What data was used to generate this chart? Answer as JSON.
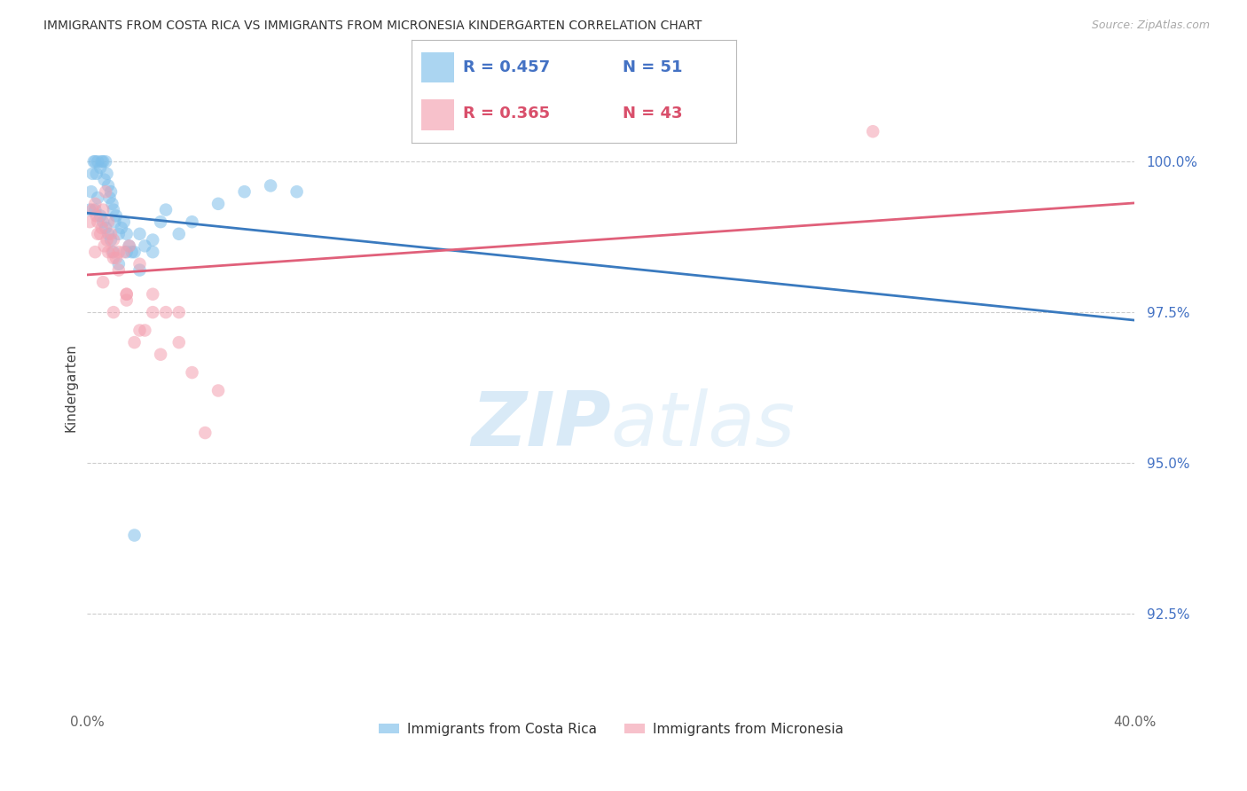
{
  "title": "IMMIGRANTS FROM COSTA RICA VS IMMIGRANTS FROM MICRONESIA KINDERGARTEN CORRELATION CHART",
  "source": "Source: ZipAtlas.com",
  "ylabel": "Kindergarten",
  "xlim": [
    0.0,
    40.0
  ],
  "ylim": [
    91.0,
    101.5
  ],
  "yticks": [
    92.5,
    95.0,
    97.5,
    100.0
  ],
  "ytick_labels": [
    "92.5%",
    "95.0%",
    "97.5%",
    "100.0%"
  ],
  "xticks": [
    0.0,
    5.0,
    10.0,
    15.0,
    20.0,
    25.0,
    30.0,
    35.0,
    40.0
  ],
  "xtick_labels": [
    "0.0%",
    "",
    "",
    "",
    "",
    "",
    "",
    "",
    "40.0%"
  ],
  "legend_blue_r": "R = 0.457",
  "legend_blue_n": "N = 51",
  "legend_pink_r": "R = 0.365",
  "legend_pink_n": "N = 43",
  "blue_color": "#7fbfea",
  "pink_color": "#f4a0b0",
  "blue_line_color": "#3a7abf",
  "pink_line_color": "#e0607a",
  "costa_rica_x": [
    0.1,
    0.15,
    0.2,
    0.25,
    0.3,
    0.35,
    0.4,
    0.5,
    0.55,
    0.6,
    0.65,
    0.7,
    0.75,
    0.8,
    0.85,
    0.9,
    0.95,
    1.0,
    1.05,
    1.1,
    1.2,
    1.3,
    1.4,
    1.5,
    1.6,
    1.7,
    1.8,
    2.0,
    2.2,
    2.5,
    2.8,
    3.0,
    3.5,
    4.0,
    5.0,
    6.0,
    7.0,
    8.0,
    0.3,
    0.4,
    0.6,
    0.8,
    1.0,
    1.2,
    1.5,
    2.0,
    0.5,
    0.7,
    0.9,
    2.5,
    1.8
  ],
  "costa_rica_y": [
    99.2,
    99.5,
    99.8,
    100.0,
    100.0,
    99.8,
    100.0,
    99.9,
    100.0,
    100.0,
    99.7,
    100.0,
    99.8,
    99.6,
    99.4,
    99.5,
    99.3,
    99.2,
    99.0,
    99.1,
    98.8,
    98.9,
    99.0,
    98.8,
    98.6,
    98.5,
    98.5,
    98.8,
    98.6,
    98.7,
    99.0,
    99.2,
    98.8,
    99.0,
    99.3,
    99.5,
    99.6,
    99.5,
    99.2,
    99.4,
    99.0,
    98.8,
    98.5,
    98.3,
    98.5,
    98.2,
    99.1,
    98.9,
    98.7,
    98.5,
    93.8
  ],
  "micronesia_x": [
    0.1,
    0.2,
    0.3,
    0.4,
    0.5,
    0.6,
    0.7,
    0.8,
    0.9,
    1.0,
    1.2,
    1.4,
    1.6,
    2.0,
    2.5,
    3.0,
    3.5,
    0.35,
    0.55,
    0.75,
    0.95,
    1.1,
    1.5,
    2.2,
    0.4,
    0.65,
    1.0,
    1.5,
    2.0,
    4.5,
    1.8,
    2.8,
    0.8,
    1.2,
    1.5,
    2.5,
    3.5,
    4.0,
    5.0,
    30.0,
    0.3,
    0.6,
    1.0
  ],
  "micronesia_y": [
    99.0,
    99.2,
    99.3,
    99.0,
    98.8,
    99.2,
    99.5,
    99.0,
    98.8,
    98.7,
    98.5,
    98.5,
    98.6,
    98.3,
    97.8,
    97.5,
    97.5,
    99.1,
    98.9,
    98.7,
    98.5,
    98.4,
    97.8,
    97.2,
    98.8,
    98.6,
    98.4,
    97.7,
    97.2,
    95.5,
    97.0,
    96.8,
    98.5,
    98.2,
    97.8,
    97.5,
    97.0,
    96.5,
    96.2,
    100.5,
    98.5,
    98.0,
    97.5
  ]
}
